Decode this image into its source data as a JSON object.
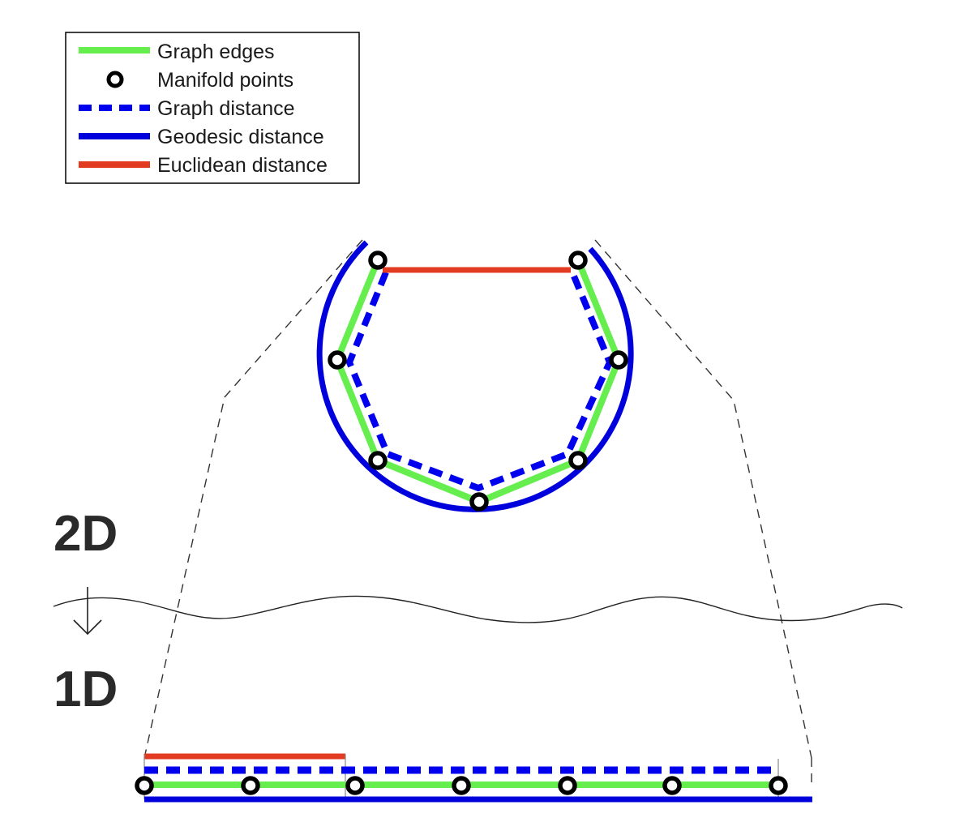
{
  "legend": {
    "items": [
      {
        "label": "Graph edges",
        "kind": "graph-edges"
      },
      {
        "label": "Manifold points",
        "kind": "manifold-points"
      },
      {
        "label": "Graph distance",
        "kind": "graph-distance"
      },
      {
        "label": "Geodesic distance",
        "kind": "geodesic-distance"
      },
      {
        "label": "Euclidean distance",
        "kind": "euclidean-distance"
      }
    ]
  },
  "labels": {
    "upper": "2D",
    "lower": "1D"
  },
  "colors": {
    "graph_edges": "#66ee4f",
    "manifold_points": "#000000",
    "graph_distance": "#0000ee",
    "geodesic_distance": "#0000dd",
    "euclidean_distance": "#e33b22",
    "guide_lines": "#333333"
  },
  "manifold": {
    "point_count": 7
  }
}
